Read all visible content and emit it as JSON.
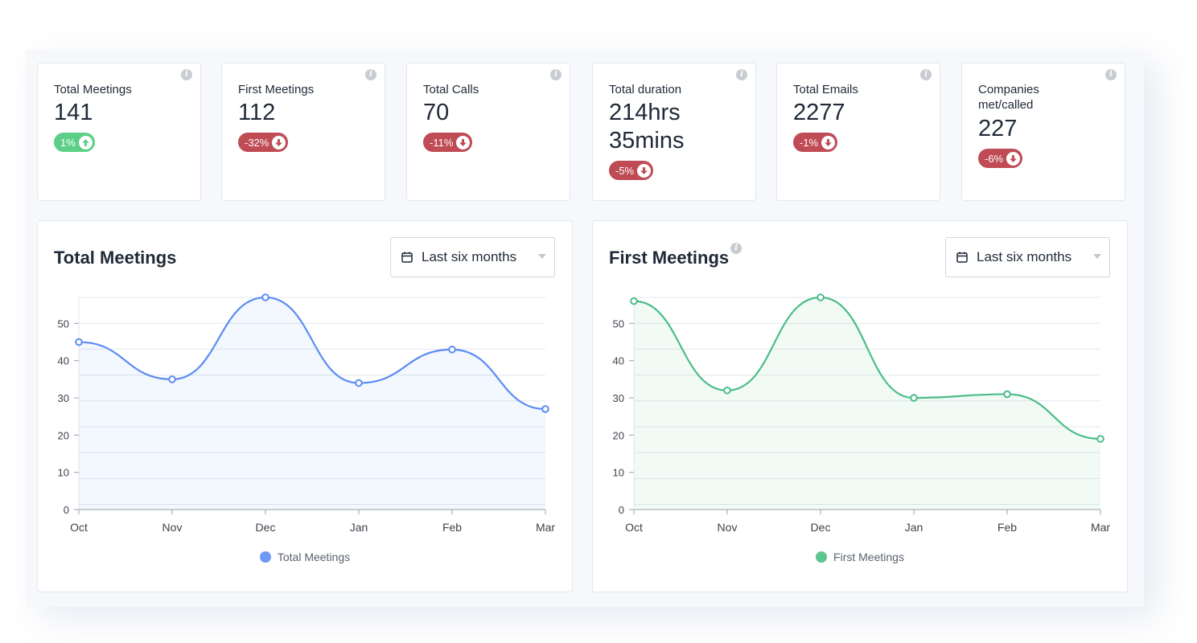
{
  "stats": [
    {
      "label": "Total Meetings",
      "value": "141",
      "change": "1%",
      "direction": "up"
    },
    {
      "label": "First Meetings",
      "value": "112",
      "change": "-32%",
      "direction": "down"
    },
    {
      "label": "Total Calls",
      "value": "70",
      "change": "-11%",
      "direction": "down"
    },
    {
      "label": "Total duration",
      "value": "214hrs 35mins",
      "change": "-5%",
      "direction": "down"
    },
    {
      "label": "Total Emails",
      "value": "2277",
      "change": "-1%",
      "direction": "down"
    },
    {
      "label": "Companies met/called",
      "value": "227",
      "change": "-6%",
      "direction": "down"
    }
  ],
  "colors": {
    "up": "#5ccf86",
    "down": "#bf4b55",
    "total_meetings": "#5b8cf5",
    "first_meetings": "#4bbd86"
  },
  "charts": [
    {
      "title": "Total Meetings",
      "dropdown": "Last six months",
      "legend": "Total Meetings",
      "has_info_icon": false
    },
    {
      "title": "First Meetings",
      "dropdown": "Last six months",
      "legend": "First Meetings",
      "has_info_icon": true
    }
  ],
  "chart_data": [
    {
      "type": "line",
      "title": "Total Meetings",
      "categories": [
        "Oct",
        "Nov",
        "Dec",
        "Jan",
        "Feb",
        "Mar"
      ],
      "series": [
        {
          "name": "Total Meetings",
          "values": [
            45,
            35,
            57,
            34,
            43,
            27
          ]
        }
      ],
      "ylim": [
        0,
        57
      ],
      "yticks": [
        0,
        10,
        20,
        30,
        40,
        50
      ],
      "grid": true,
      "area_fill": true,
      "smooth": true,
      "legend": "bottom"
    },
    {
      "type": "line",
      "title": "First Meetings",
      "categories": [
        "Oct",
        "Nov",
        "Dec",
        "Jan",
        "Feb",
        "Mar"
      ],
      "series": [
        {
          "name": "First Meetings",
          "values": [
            56,
            32,
            57,
            30,
            31,
            19
          ]
        }
      ],
      "ylim": [
        0,
        57
      ],
      "yticks": [
        0,
        10,
        20,
        30,
        40,
        50
      ],
      "grid": true,
      "area_fill": true,
      "smooth": true,
      "legend": "bottom"
    }
  ]
}
